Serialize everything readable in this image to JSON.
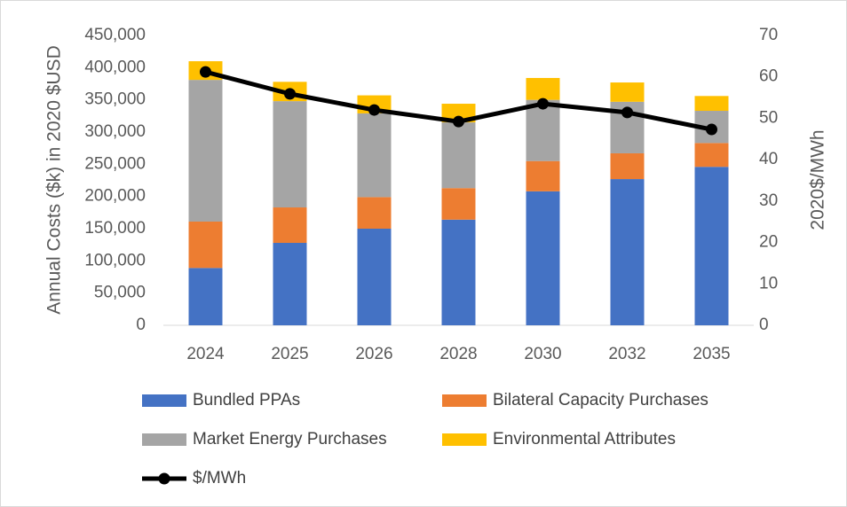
{
  "chart_data": {
    "type": "bar",
    "y_label": "Annual Costs ($k) in 2020 $USD",
    "y2_label": "2020$/MWh",
    "categories": [
      "2024",
      "2025",
      "2026",
      "2028",
      "2030",
      "2032",
      "2035"
    ],
    "series": [
      {
        "name": "Bundled PPAs",
        "color": "#4472c4",
        "values": [
          89000,
          128000,
          150000,
          164000,
          208000,
          227000,
          246000
        ]
      },
      {
        "name": "Bilateral Capacity Purchases",
        "color": "#ed7d31",
        "values": [
          72000,
          55000,
          49000,
          49000,
          47000,
          40000,
          37000
        ]
      },
      {
        "name": "Market Energy Purchases",
        "color": "#a5a5a5",
        "values": [
          220000,
          165000,
          130000,
          102000,
          95000,
          80000,
          50000
        ]
      },
      {
        "name": "Environmental Attributes",
        "color": "#ffc000",
        "values": [
          29000,
          30000,
          28000,
          29000,
          34000,
          30000,
          23000
        ]
      },
      {
        "name": "$/MWh",
        "color": "#000000",
        "type": "line",
        "axis": "y2",
        "values": [
          61.2,
          55.9,
          52.0,
          49.2,
          53.5,
          51.4,
          47.3
        ]
      }
    ],
    "ylim": [
      0,
      450000
    ],
    "yticks": [
      0,
      {
        "value": 50000,
        "label": "50,000"
      },
      {
        "value": 100000,
        "label": "100,000"
      },
      {
        "value": 150000,
        "label": "150,000"
      },
      {
        "value": 200000,
        "label": "200,000"
      },
      {
        "value": 250000,
        "label": "250,000"
      },
      {
        "value": 300000,
        "label": "300,000"
      },
      {
        "value": 350000,
        "label": "350,000"
      },
      {
        "value": 400000,
        "label": "400,000"
      },
      {
        "value": 450000,
        "label": "450,000"
      }
    ],
    "y2lim": [
      0,
      70
    ],
    "y2ticks": [
      0,
      10,
      20,
      30,
      40,
      50,
      60,
      70
    ],
    "grid": false,
    "legend": "bottom"
  }
}
